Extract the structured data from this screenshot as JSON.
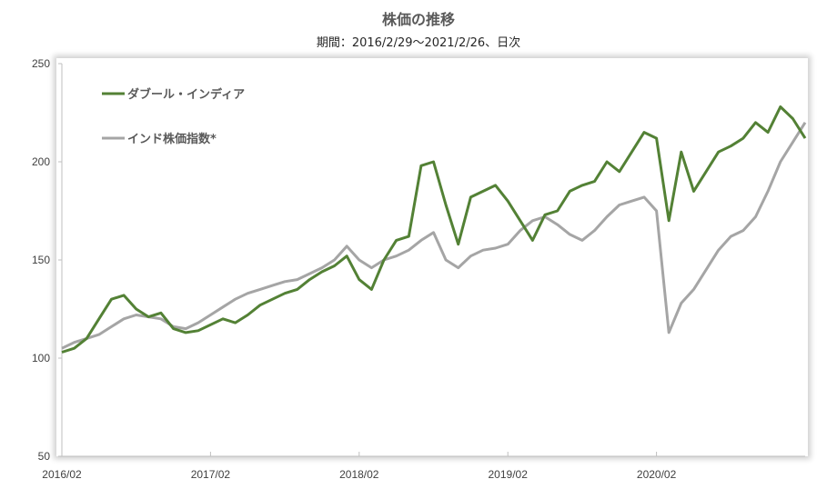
{
  "chart_data": {
    "type": "line",
    "title": "株価の推移",
    "subtitle": "期間：2016/2/29〜2021/2/26、日次",
    "xlabel": "",
    "ylabel": "",
    "ylim": [
      50,
      250
    ],
    "yticks": [
      "50",
      "100",
      "150",
      "200",
      "250"
    ],
    "xticks": [
      "2016/02",
      "2017/02",
      "2018/02",
      "2019/02",
      "2020/02"
    ],
    "x": [
      "2016-02",
      "2016-03",
      "2016-04",
      "2016-05",
      "2016-06",
      "2016-07",
      "2016-08",
      "2016-09",
      "2016-10",
      "2016-11",
      "2016-12",
      "2017-01",
      "2017-02",
      "2017-03",
      "2017-04",
      "2017-05",
      "2017-06",
      "2017-07",
      "2017-08",
      "2017-09",
      "2017-10",
      "2017-11",
      "2017-12",
      "2018-01",
      "2018-02",
      "2018-03",
      "2018-04",
      "2018-05",
      "2018-06",
      "2018-07",
      "2018-08",
      "2018-09",
      "2018-10",
      "2018-11",
      "2018-12",
      "2019-01",
      "2019-02",
      "2019-03",
      "2019-04",
      "2019-05",
      "2019-06",
      "2019-07",
      "2019-08",
      "2019-09",
      "2019-10",
      "2019-11",
      "2019-12",
      "2020-01",
      "2020-02",
      "2020-03",
      "2020-04",
      "2020-05",
      "2020-06",
      "2020-07",
      "2020-08",
      "2020-09",
      "2020-10",
      "2020-11",
      "2020-12",
      "2021-01",
      "2021-02"
    ],
    "series": [
      {
        "name": "ダブール・インディア",
        "color": "#538135",
        "values": [
          103,
          105,
          110,
          120,
          130,
          132,
          125,
          121,
          123,
          115,
          113,
          114,
          117,
          120,
          118,
          122,
          127,
          130,
          133,
          135,
          140,
          144,
          147,
          152,
          140,
          135,
          150,
          160,
          162,
          198,
          200,
          178,
          158,
          182,
          185,
          188,
          180,
          170,
          160,
          173,
          175,
          185,
          188,
          190,
          200,
          195,
          205,
          215,
          212,
          170,
          205,
          185,
          195,
          205,
          208,
          212,
          220,
          215,
          228,
          222,
          212
        ]
      },
      {
        "name": "インド株価指数*",
        "color": "#A5A5A5",
        "values": [
          105,
          108,
          110,
          112,
          116,
          120,
          122,
          121,
          120,
          116,
          115,
          118,
          122,
          126,
          130,
          133,
          135,
          137,
          139,
          140,
          143,
          146,
          150,
          157,
          150,
          146,
          150,
          152,
          155,
          160,
          164,
          150,
          146,
          152,
          155,
          156,
          158,
          165,
          170,
          172,
          168,
          163,
          160,
          165,
          172,
          178,
          180,
          182,
          175,
          113,
          128,
          135,
          145,
          155,
          162,
          165,
          172,
          185,
          200,
          210,
          220
        ]
      }
    ],
    "grid": false,
    "legend": "top-left"
  }
}
